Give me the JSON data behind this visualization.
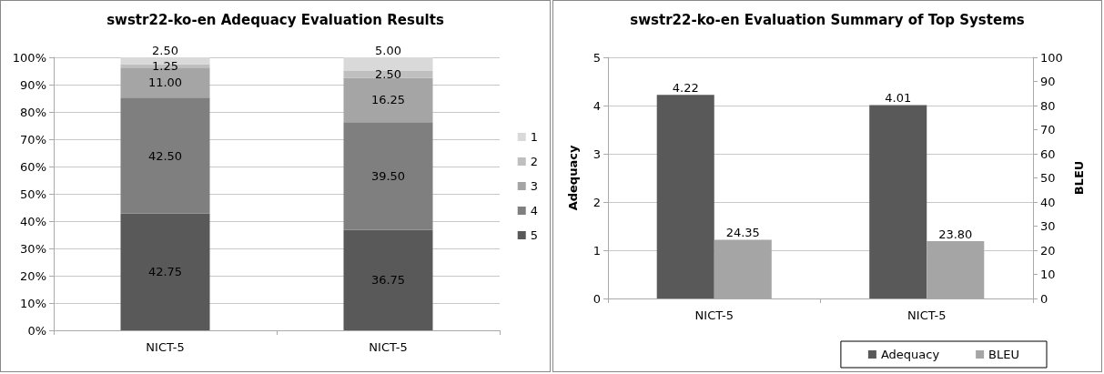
{
  "chart_data": [
    {
      "type": "bar",
      "title": "swstr22-ko-en Adequacy Evaluation Results",
      "categories": [
        "NICT-5",
        "NICT-5"
      ],
      "stacked": true,
      "ylim": [
        0,
        100
      ],
      "yticks": [
        {
          "value": 0,
          "label": "0%"
        },
        {
          "value": 10,
          "label": "10%"
        },
        {
          "value": 20,
          "label": "20%"
        },
        {
          "value": 30,
          "label": "30%"
        },
        {
          "value": 40,
          "label": "40%"
        },
        {
          "value": 50,
          "label": "50%"
        },
        {
          "value": 60,
          "label": "60%"
        },
        {
          "value": 70,
          "label": "70%"
        },
        {
          "value": 80,
          "label": "80%"
        },
        {
          "value": 90,
          "label": "90%"
        },
        {
          "value": 100,
          "label": "100%"
        }
      ],
      "grid": "y",
      "legend": "right",
      "series": [
        {
          "name": "5",
          "color": "#595959",
          "values": [
            42.75,
            36.75
          ],
          "value_labels": [
            "42.75",
            "36.75"
          ]
        },
        {
          "name": "4",
          "color": "#7f7f7f",
          "values": [
            42.5,
            39.5
          ],
          "value_labels": [
            "42.50",
            "39.50"
          ]
        },
        {
          "name": "3",
          "color": "#a5a5a5",
          "values": [
            11,
            16.25
          ],
          "value_labels": [
            "11.00",
            "16.25"
          ]
        },
        {
          "name": "2",
          "color": "#bfbfbf",
          "values": [
            1.25,
            2.5
          ],
          "value_labels": [
            "1.25",
            "2.50"
          ]
        },
        {
          "name": "1",
          "color": "#d9d9d9",
          "values": [
            2.5,
            5
          ],
          "value_labels": [
            "2.50",
            "5.00"
          ]
        }
      ]
    },
    {
      "type": "bar",
      "title": "swstr22-ko-en Evaluation Summary of Top Systems",
      "categories": [
        "NICT-5",
        "NICT-5"
      ],
      "ylabel": "Adequacy",
      "y2label": "BLEU",
      "ylim": [
        0,
        5
      ],
      "yticks": [
        0,
        1,
        2,
        3,
        4,
        5
      ],
      "y2lim": [
        0,
        100
      ],
      "y2ticks": [
        0,
        10,
        20,
        30,
        40,
        50,
        60,
        70,
        80,
        90,
        100
      ],
      "grid": "y",
      "legend": "bottom right",
      "series": [
        {
          "name": "Adequacy",
          "color": "#595959",
          "values": [
            4.22,
            4.01
          ],
          "value_labels": [
            "4.22",
            "4.01"
          ]
        },
        {
          "name": "BLEU",
          "color": "#a5a5a5",
          "axis": "y2",
          "values": [
            24.35,
            23.8
          ],
          "value_labels": [
            "24.35",
            "23.80"
          ]
        }
      ]
    }
  ]
}
